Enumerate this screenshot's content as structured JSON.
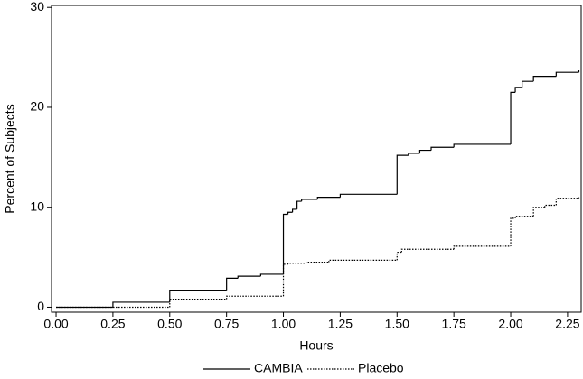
{
  "chart_data": {
    "type": "step",
    "x_label": "Hours",
    "y_label": "Percent of Subjects",
    "xlim": [
      -0.02,
      2.31
    ],
    "ylim": [
      -0.5,
      30.2
    ],
    "xticks": [
      {
        "value": 0,
        "label": "0.00"
      },
      {
        "value": 0.25,
        "label": "0.25"
      },
      {
        "value": 0.5,
        "label": "0.50"
      },
      {
        "value": 0.75,
        "label": "0.75"
      },
      {
        "value": 1,
        "label": "1.00"
      },
      {
        "value": 1.25,
        "label": "1.25"
      },
      {
        "value": 1.5,
        "label": "1.50"
      },
      {
        "value": 1.75,
        "label": "1.75"
      },
      {
        "value": 2,
        "label": "2.00"
      },
      {
        "value": 2.25,
        "label": "2.25"
      }
    ],
    "yticks": [
      0,
      10,
      20,
      30
    ],
    "legend": "bottom",
    "series": [
      {
        "name": "CAMBIA",
        "color": "#000000",
        "line_style": "solid",
        "x": [
          0,
          0.25,
          0.5,
          0.75,
          0.8,
          0.9,
          1.0,
          1.02,
          1.04,
          1.06,
          1.08,
          1.15,
          1.25,
          1.5,
          1.55,
          1.6,
          1.65,
          1.75,
          2.0,
          2.02,
          2.05,
          2.1,
          2.2,
          2.3
        ],
        "values": [
          0,
          0.5,
          1.7,
          2.9,
          3.1,
          3.3,
          9.3,
          9.5,
          9.8,
          10.6,
          10.8,
          11.0,
          11.3,
          15.2,
          15.4,
          15.7,
          16.0,
          16.3,
          21.5,
          22.0,
          22.6,
          23.1,
          23.5,
          23.7
        ]
      },
      {
        "name": "Placebo",
        "color": "#000000",
        "line_style": "dotted",
        "x": [
          0,
          0.5,
          0.75,
          1.0,
          1.02,
          1.1,
          1.2,
          1.5,
          1.52,
          1.75,
          2.0,
          2.02,
          2.1,
          2.15,
          2.2,
          2.3
        ],
        "values": [
          0,
          0.8,
          1.1,
          4.3,
          4.4,
          4.5,
          4.7,
          5.5,
          5.8,
          6.1,
          8.9,
          9.1,
          10.0,
          10.2,
          10.9,
          11.0
        ]
      }
    ]
  }
}
